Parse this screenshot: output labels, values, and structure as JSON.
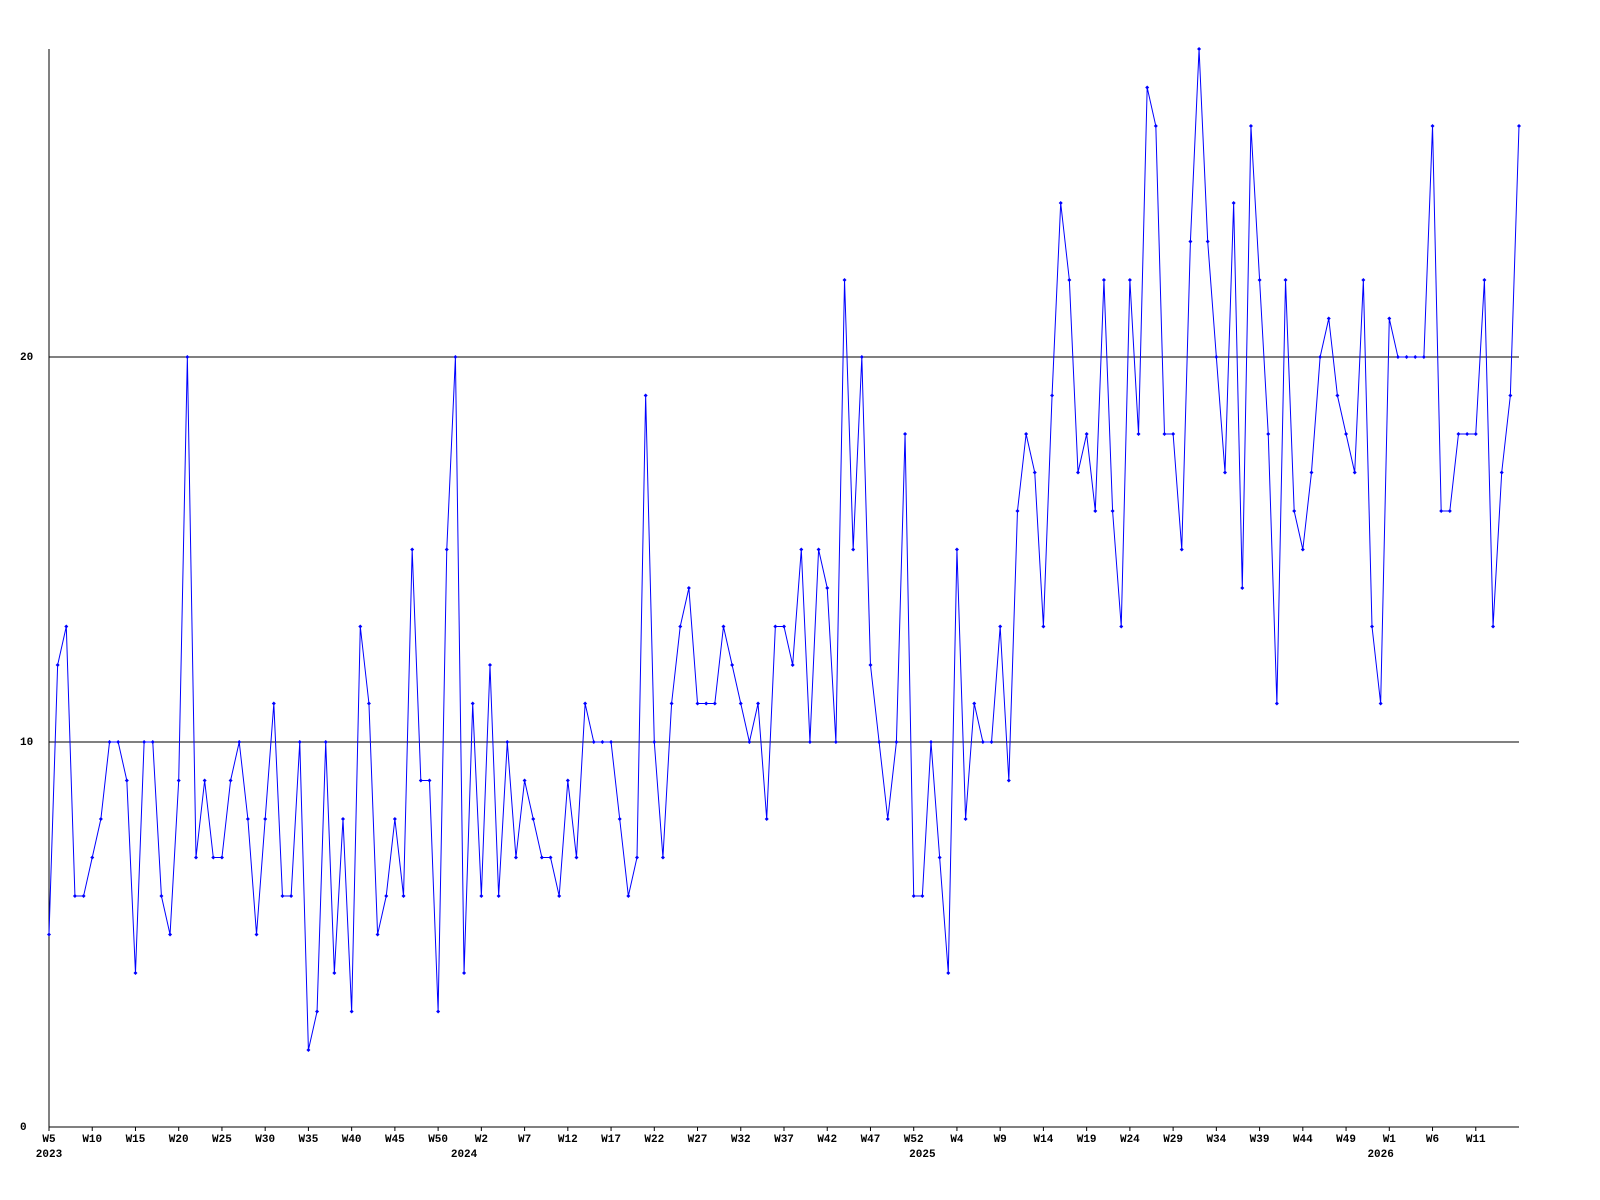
{
  "chart_data": {
    "type": "line",
    "categories": [
      "W5",
      null,
      null,
      null,
      null,
      "W10",
      null,
      null,
      null,
      null,
      "W15",
      null,
      null,
      null,
      null,
      "W20",
      null,
      null,
      null,
      null,
      "W25",
      null,
      null,
      null,
      null,
      "W30",
      null,
      null,
      null,
      null,
      "W35",
      null,
      null,
      null,
      null,
      "W40",
      null,
      null,
      null,
      null,
      "W45",
      null,
      null,
      null,
      null,
      "W50",
      null,
      null,
      null,
      null,
      "W2",
      null,
      null,
      null,
      null,
      "W7",
      null,
      null,
      null,
      null,
      "W12",
      null,
      null,
      null,
      null,
      "W17",
      null,
      null,
      null,
      null,
      "W22",
      null,
      null,
      null,
      null,
      "W27",
      null,
      null,
      null,
      null,
      "W32",
      null,
      null,
      null,
      null,
      "W37",
      null,
      null,
      null,
      null,
      "W42",
      null,
      null,
      null,
      null,
      "W47",
      null,
      null,
      null,
      null,
      "W52",
      null,
      null,
      null,
      null,
      "W4",
      null,
      null,
      null,
      null,
      "W9",
      null,
      null,
      null,
      null,
      "W14",
      null,
      null,
      null,
      null,
      "W19",
      null,
      null,
      null,
      null,
      "W24",
      null,
      null,
      null,
      null,
      "W29",
      null,
      null,
      null,
      null,
      "W34",
      null,
      null,
      null,
      null,
      "W39",
      null,
      null,
      null,
      null,
      "W44",
      null,
      null,
      null,
      null,
      "W49",
      null,
      null,
      null,
      null,
      "W1",
      null,
      null,
      null,
      null,
      "W6",
      null,
      null,
      null,
      null,
      "W11",
      null,
      null,
      null,
      null,
      null
    ],
    "years": [
      "2023",
      null,
      null,
      null,
      null,
      null,
      null,
      null,
      null,
      null,
      null,
      null,
      null,
      null,
      null,
      null,
      null,
      null,
      null,
      null,
      null,
      null,
      null,
      null,
      null,
      null,
      null,
      null,
      null,
      null,
      null,
      null,
      null,
      null,
      null,
      null,
      null,
      null,
      null,
      null,
      null,
      null,
      null,
      null,
      null,
      null,
      null,
      null,
      "2024",
      null,
      null,
      null,
      null,
      null,
      null,
      null,
      null,
      null,
      null,
      null,
      null,
      null,
      null,
      null,
      null,
      null,
      null,
      null,
      null,
      null,
      null,
      null,
      null,
      null,
      null,
      null,
      null,
      null,
      null,
      null,
      null,
      null,
      null,
      null,
      null,
      null,
      null,
      null,
      null,
      null,
      null,
      null,
      null,
      null,
      null,
      null,
      null,
      null,
      null,
      null,
      null,
      "2025",
      null,
      null,
      null,
      null,
      null,
      null,
      null,
      null,
      null,
      null,
      null,
      null,
      null,
      null,
      null,
      null,
      null,
      null,
      null,
      null,
      null,
      null,
      null,
      null,
      null,
      null,
      null,
      null,
      null,
      null,
      null,
      null,
      null,
      null,
      null,
      null,
      null,
      null,
      null,
      null,
      null,
      null,
      null,
      null,
      null,
      null,
      null,
      null,
      null,
      null,
      null,
      null,
      "2026",
      null,
      null,
      null,
      null,
      null,
      null,
      null,
      null,
      null,
      null,
      null,
      null,
      null,
      null,
      null,
      null
    ],
    "series": [
      {
        "color": "#0000ff",
        "values": [
          5,
          12,
          13,
          6,
          6,
          7,
          8,
          10,
          10,
          9,
          4,
          10,
          10,
          6,
          5,
          9,
          20,
          7,
          9,
          7,
          7,
          9,
          10,
          8,
          5,
          8,
          11,
          6,
          6,
          10,
          2,
          3,
          10,
          4,
          8,
          3,
          13,
          11,
          5,
          6,
          8,
          6,
          15,
          9,
          9,
          3,
          15,
          20,
          4,
          11,
          6,
          12,
          6,
          10,
          7,
          9,
          8,
          7,
          7,
          6,
          9,
          7,
          11,
          10,
          10,
          10,
          8,
          6,
          7,
          19,
          10,
          7,
          11,
          13,
          14,
          11,
          11,
          11,
          13,
          12,
          11,
          10,
          11,
          8,
          13,
          13,
          12,
          15,
          10,
          15,
          14,
          10,
          22,
          15,
          20,
          12,
          10,
          8,
          10,
          18,
          6,
          6,
          10,
          7,
          4,
          15,
          8,
          11,
          10,
          10,
          13,
          9,
          16,
          18,
          17,
          13,
          19,
          24,
          22,
          17,
          18,
          16,
          22,
          16,
          13,
          22,
          18,
          27,
          26,
          18,
          18,
          15,
          23,
          28,
          23,
          20,
          17,
          24,
          14,
          26,
          22,
          18,
          11,
          22,
          16,
          15,
          17,
          20,
          21,
          19,
          18,
          17,
          22,
          13,
          11,
          21,
          20,
          20,
          20,
          20,
          26,
          16,
          16,
          18,
          18,
          18,
          22,
          13,
          17,
          19,
          26
        ]
      }
    ],
    "ylim": [
      0,
      28
    ],
    "yticks": [
      0,
      10,
      20
    ],
    "grid": true
  }
}
